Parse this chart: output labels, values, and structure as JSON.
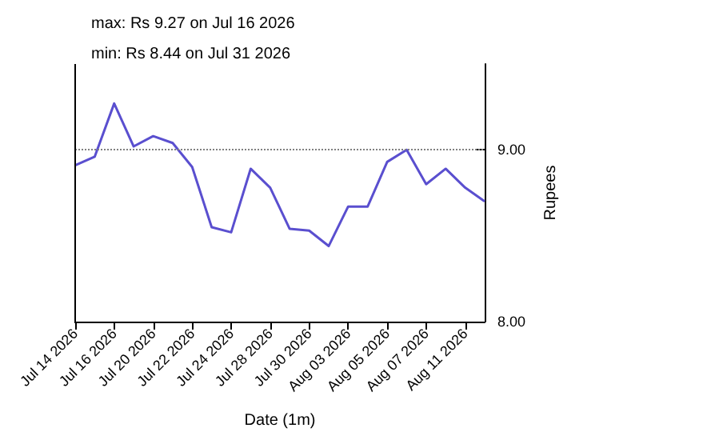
{
  "chart_data": {
    "type": "line",
    "title": "max: Rs 9.27 on Jul 16 2026",
    "subtitle": "min: Rs 8.44 on Jul 31 2026",
    "xlabel": "Date (1m)",
    "ylabel": "Rupees",
    "categories": [
      "Jul 14 2026",
      null,
      "Jul 16 2026",
      null,
      "Jul 20 2026",
      null,
      "Jul 22 2026",
      null,
      "Jul 24 2026",
      null,
      "Jul 28 2026",
      null,
      "Jul 30 2026",
      null,
      "Aug 03 2026",
      null,
      "Aug 05 2026",
      null,
      "Aug 07 2026",
      null,
      "Aug 11 2026",
      null
    ],
    "series": [
      {
        "color": "#5a4fcf",
        "values": [
          8.91,
          8.96,
          9.27,
          9.02,
          9.08,
          9.04,
          8.9,
          8.55,
          8.52,
          8.89,
          8.78,
          8.54,
          8.53,
          8.44,
          8.67,
          8.67,
          8.93,
          9.0,
          8.8,
          8.89,
          8.78,
          8.7
        ]
      }
    ],
    "ylim": [
      8,
      9.5
    ],
    "yticks": [
      {
        "value": 8,
        "label": "8.00"
      },
      {
        "value": 9,
        "label": "9.00"
      }
    ],
    "ref_lines": [
      {
        "axis": "y",
        "value": 9,
        "color": "#808080",
        "line_style": "dotted"
      }
    ],
    "grid": false,
    "marker": "none",
    "line_style": "solid"
  }
}
